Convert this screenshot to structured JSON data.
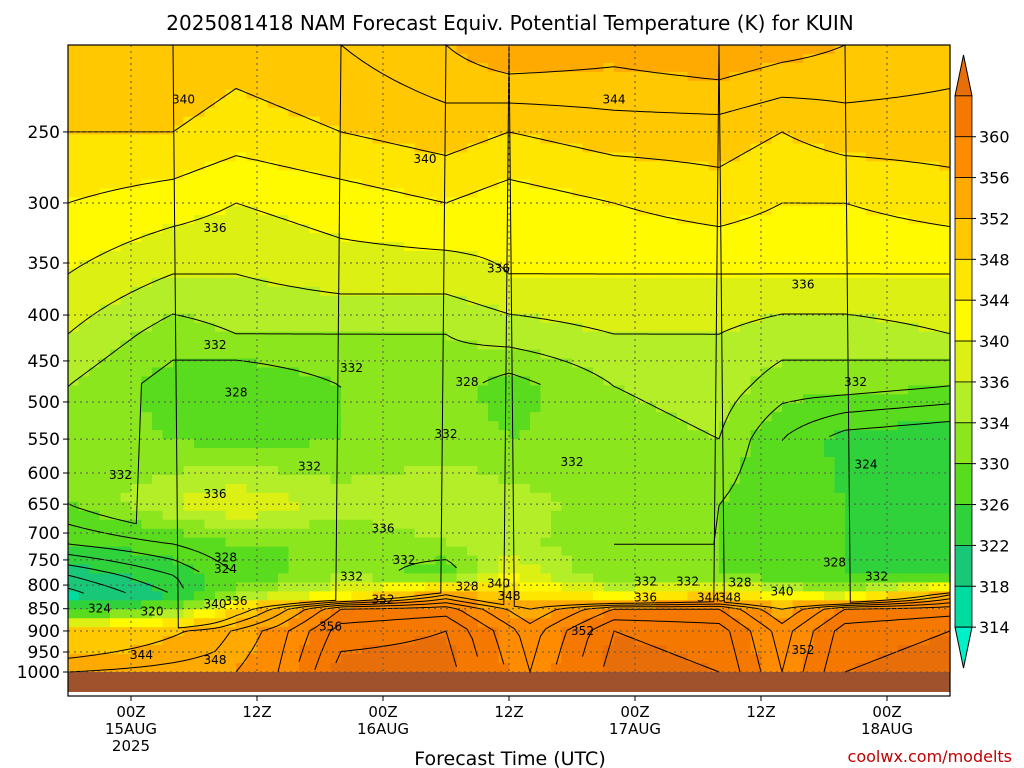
{
  "chart_data": {
    "type": "heatmap",
    "title": "2025081418 NAM Forecast Equiv. Potential Temperature (K) for KUIN",
    "xlabel": "Forecast Time (UTC)",
    "ylabel": "",
    "credit": "coolwx.com/modelts",
    "x_range_hours": [
      -6,
      78
    ],
    "x_ticks": [
      {
        "hour": 0,
        "lines": [
          "00Z",
          "15AUG",
          "2025"
        ]
      },
      {
        "hour": 12,
        "lines": [
          "12Z"
        ]
      },
      {
        "hour": 24,
        "lines": [
          "00Z",
          "16AUG"
        ]
      },
      {
        "hour": 36,
        "lines": [
          "12Z"
        ]
      },
      {
        "hour": 48,
        "lines": [
          "00Z",
          "17AUG"
        ]
      },
      {
        "hour": 60,
        "lines": [
          "12Z"
        ]
      },
      {
        "hour": 72,
        "lines": [
          "00Z",
          "18AUG"
        ]
      }
    ],
    "y_axis": {
      "scale": "log-pressure",
      "units": "hPa",
      "range": [
        1000,
        200
      ],
      "reversed": true
    },
    "y_ticks": [
      250,
      300,
      350,
      400,
      450,
      500,
      550,
      600,
      650,
      700,
      750,
      800,
      850,
      900,
      950,
      1000
    ],
    "colorbar": {
      "levels": [
        314,
        318,
        322,
        326,
        330,
        334,
        336,
        340,
        344,
        348,
        352,
        356,
        360
      ],
      "colors": [
        "#00f0c8",
        "#00dca0",
        "#18c878",
        "#30d23c",
        "#5adc1e",
        "#8ce61e",
        "#b4ee28",
        "#dcf014",
        "#fffa00",
        "#ffe600",
        "#ffc800",
        "#ffaa00",
        "#ff8c00",
        "#f57800",
        "#e86e0a"
      ]
    },
    "surface_color": "#a0522d",
    "layers": [
      {
        "p": 1000,
        "series": [
          {
            "h": -6,
            "v": 346
          },
          {
            "h": 8,
            "v": 347
          },
          {
            "h": 14,
            "v": 350
          },
          {
            "h": 20,
            "v": 357
          },
          {
            "h": 30,
            "v": 357
          },
          {
            "h": 38,
            "v": 350
          },
          {
            "h": 46,
            "v": 357
          },
          {
            "h": 56,
            "v": 356
          },
          {
            "h": 62,
            "v": 350
          },
          {
            "h": 68,
            "v": 356
          },
          {
            "h": 78,
            "v": 357
          }
        ]
      },
      {
        "p": 900,
        "series": [
          {
            "h": -6,
            "v": 340
          },
          {
            "h": 8,
            "v": 345
          },
          {
            "h": 14,
            "v": 349
          },
          {
            "h": 20,
            "v": 355
          },
          {
            "h": 30,
            "v": 356
          },
          {
            "h": 38,
            "v": 349
          },
          {
            "h": 46,
            "v": 356
          },
          {
            "h": 56,
            "v": 355
          },
          {
            "h": 62,
            "v": 349
          },
          {
            "h": 68,
            "v": 355
          },
          {
            "h": 78,
            "v": 356
          }
        ]
      },
      {
        "p": 850,
        "series": [
          {
            "h": -6,
            "v": 324
          },
          {
            "h": 4,
            "v": 330
          },
          {
            "h": 10,
            "v": 340
          },
          {
            "h": 20,
            "v": 352
          },
          {
            "h": 30,
            "v": 353
          },
          {
            "h": 38,
            "v": 346
          },
          {
            "h": 46,
            "v": 352
          },
          {
            "h": 56,
            "v": 352
          },
          {
            "h": 62,
            "v": 346
          },
          {
            "h": 68,
            "v": 352
          },
          {
            "h": 78,
            "v": 353
          }
        ]
      },
      {
        "p": 820,
        "series": [
          {
            "h": -6,
            "v": 317
          },
          {
            "h": 4,
            "v": 322
          },
          {
            "h": 10,
            "v": 332
          },
          {
            "h": 20,
            "v": 336
          },
          {
            "h": 30,
            "v": 346
          },
          {
            "h": 36,
            "v": 340
          },
          {
            "h": 46,
            "v": 336
          },
          {
            "h": 56,
            "v": 340
          },
          {
            "h": 62,
            "v": 336
          },
          {
            "h": 68,
            "v": 334
          },
          {
            "h": 78,
            "v": 346
          }
        ]
      },
      {
        "p": 780,
        "series": [
          {
            "h": -6,
            "v": 320
          },
          {
            "h": 4,
            "v": 324
          },
          {
            "h": 10,
            "v": 328
          },
          {
            "h": 20,
            "v": 332
          },
          {
            "h": 30,
            "v": 328
          },
          {
            "h": 36,
            "v": 336
          },
          {
            "h": 46,
            "v": 330
          },
          {
            "h": 56,
            "v": 330
          },
          {
            "h": 62,
            "v": 328
          },
          {
            "h": 68,
            "v": 326
          },
          {
            "h": 78,
            "v": 324
          }
        ]
      },
      {
        "p": 720,
        "series": [
          {
            "h": -6,
            "v": 326
          },
          {
            "h": 4,
            "v": 328
          },
          {
            "h": 10,
            "v": 330
          },
          {
            "h": 20,
            "v": 330
          },
          {
            "h": 30,
            "v": 332
          },
          {
            "h": 36,
            "v": 333
          },
          {
            "h": 46,
            "v": 330
          },
          {
            "h": 56,
            "v": 330
          },
          {
            "h": 62,
            "v": 328
          },
          {
            "h": 68,
            "v": 326
          },
          {
            "h": 78,
            "v": 324
          }
        ]
      },
      {
        "p": 650,
        "series": [
          {
            "h": -6,
            "v": 330
          },
          {
            "h": 4,
            "v": 334
          },
          {
            "h": 10,
            "v": 336
          },
          {
            "h": 20,
            "v": 333
          },
          {
            "h": 30,
            "v": 334
          },
          {
            "h": 36,
            "v": 333
          },
          {
            "h": 46,
            "v": 331
          },
          {
            "h": 56,
            "v": 330
          },
          {
            "h": 62,
            "v": 328
          },
          {
            "h": 68,
            "v": 326
          },
          {
            "h": 78,
            "v": 324
          }
        ]
      },
      {
        "p": 550,
        "series": [
          {
            "h": -6,
            "v": 331
          },
          {
            "h": 4,
            "v": 330
          },
          {
            "h": 10,
            "v": 329
          },
          {
            "h": 20,
            "v": 330
          },
          {
            "h": 30,
            "v": 331
          },
          {
            "h": 36,
            "v": 330
          },
          {
            "h": 46,
            "v": 331
          },
          {
            "h": 56,
            "v": 332
          },
          {
            "h": 62,
            "v": 328
          },
          {
            "h": 68,
            "v": 325
          },
          {
            "h": 78,
            "v": 324
          }
        ]
      },
      {
        "p": 480,
        "series": [
          {
            "h": -6,
            "v": 332
          },
          {
            "h": 4,
            "v": 329
          },
          {
            "h": 10,
            "v": 328
          },
          {
            "h": 20,
            "v": 330
          },
          {
            "h": 30,
            "v": 331
          },
          {
            "h": 36,
            "v": 329
          },
          {
            "h": 46,
            "v": 332
          },
          {
            "h": 56,
            "v": 333
          },
          {
            "h": 62,
            "v": 331
          },
          {
            "h": 68,
            "v": 331
          },
          {
            "h": 78,
            "v": 330
          }
        ]
      },
      {
        "p": 420,
        "series": [
          {
            "h": -6,
            "v": 334
          },
          {
            "h": 4,
            "v": 331
          },
          {
            "h": 10,
            "v": 332
          },
          {
            "h": 20,
            "v": 332
          },
          {
            "h": 30,
            "v": 332
          },
          {
            "h": 36,
            "v": 333
          },
          {
            "h": 46,
            "v": 334
          },
          {
            "h": 56,
            "v": 334
          },
          {
            "h": 62,
            "v": 333
          },
          {
            "h": 68,
            "v": 333
          },
          {
            "h": 78,
            "v": 334
          }
        ]
      },
      {
        "p": 360,
        "series": [
          {
            "h": -6,
            "v": 336
          },
          {
            "h": 4,
            "v": 334
          },
          {
            "h": 10,
            "v": 334
          },
          {
            "h": 20,
            "v": 335
          },
          {
            "h": 30,
            "v": 335
          },
          {
            "h": 36,
            "v": 336
          },
          {
            "h": 46,
            "v": 336
          },
          {
            "h": 56,
            "v": 336
          },
          {
            "h": 62,
            "v": 336
          },
          {
            "h": 68,
            "v": 336
          },
          {
            "h": 78,
            "v": 336
          }
        ]
      },
      {
        "p": 300,
        "series": [
          {
            "h": -6,
            "v": 338
          },
          {
            "h": 4,
            "v": 337
          },
          {
            "h": 10,
            "v": 336
          },
          {
            "h": 20,
            "v": 337
          },
          {
            "h": 30,
            "v": 338
          },
          {
            "h": 36,
            "v": 337
          },
          {
            "h": 46,
            "v": 338
          },
          {
            "h": 56,
            "v": 339
          },
          {
            "h": 62,
            "v": 338
          },
          {
            "h": 68,
            "v": 338
          },
          {
            "h": 78,
            "v": 339
          }
        ]
      },
      {
        "p": 250,
        "series": [
          {
            "h": -6,
            "v": 340
          },
          {
            "h": 4,
            "v": 340
          },
          {
            "h": 10,
            "v": 339
          },
          {
            "h": 20,
            "v": 340
          },
          {
            "h": 30,
            "v": 341
          },
          {
            "h": 36,
            "v": 340
          },
          {
            "h": 46,
            "v": 341
          },
          {
            "h": 56,
            "v": 341
          },
          {
            "h": 62,
            "v": 340
          },
          {
            "h": 68,
            "v": 341
          },
          {
            "h": 78,
            "v": 341
          }
        ]
      },
      {
        "p": 200,
        "series": [
          {
            "h": -6,
            "v": 342
          },
          {
            "h": 4,
            "v": 342
          },
          {
            "h": 10,
            "v": 341
          },
          {
            "h": 20,
            "v": 342
          },
          {
            "h": 30,
            "v": 344
          },
          {
            "h": 36,
            "v": 346
          },
          {
            "h": 46,
            "v": 345
          },
          {
            "h": 56,
            "v": 346
          },
          {
            "h": 62,
            "v": 345
          },
          {
            "h": 68,
            "v": 344
          },
          {
            "h": 78,
            "v": 343
          }
        ]
      }
    ],
    "contour_labels": [
      {
        "text": "340",
        "h": 5,
        "p": 230
      },
      {
        "text": "344",
        "h": 46,
        "p": 230
      },
      {
        "text": "340",
        "h": 28,
        "p": 268
      },
      {
        "text": "336",
        "h": 8,
        "p": 320
      },
      {
        "text": "336",
        "h": 35,
        "p": 355
      },
      {
        "text": "336",
        "h": 64,
        "p": 370
      },
      {
        "text": "332",
        "h": 8,
        "p": 432
      },
      {
        "text": "332",
        "h": 21,
        "p": 458
      },
      {
        "text": "328",
        "h": 10,
        "p": 488
      },
      {
        "text": "328",
        "h": 32,
        "p": 475
      },
      {
        "text": "332",
        "h": 69,
        "p": 475
      },
      {
        "text": "332",
        "h": 30,
        "p": 543
      },
      {
        "text": "332",
        "h": -1,
        "p": 603
      },
      {
        "text": "332",
        "h": 17,
        "p": 590
      },
      {
        "text": "332",
        "h": 42,
        "p": 583
      },
      {
        "text": "324",
        "h": 70,
        "p": 587
      },
      {
        "text": "336",
        "h": 8,
        "p": 633
      },
      {
        "text": "336",
        "h": 24,
        "p": 692
      },
      {
        "text": "328",
        "h": 9,
        "p": 745
      },
      {
        "text": "324",
        "h": 9,
        "p": 768
      },
      {
        "text": "332",
        "h": 26,
        "p": 750
      },
      {
        "text": "328",
        "h": 67,
        "p": 755
      },
      {
        "text": "332",
        "h": 21,
        "p": 783
      },
      {
        "text": "332",
        "h": 71,
        "p": 783
      },
      {
        "text": "332",
        "h": 49,
        "p": 793
      },
      {
        "text": "332",
        "h": 53,
        "p": 793
      },
      {
        "text": "328",
        "h": 58,
        "p": 795
      },
      {
        "text": "340",
        "h": 35,
        "p": 797
      },
      {
        "text": "328",
        "h": 32,
        "p": 803
      },
      {
        "text": "340",
        "h": 62,
        "p": 813
      },
      {
        "text": "348",
        "h": 36,
        "p": 823
      },
      {
        "text": "336",
        "h": 49,
        "p": 826
      },
      {
        "text": "344",
        "h": 55,
        "p": 826
      },
      {
        "text": "348",
        "h": 57,
        "p": 826
      },
      {
        "text": "352",
        "h": 24,
        "p": 830
      },
      {
        "text": "336",
        "h": 10,
        "p": 833
      },
      {
        "text": "340",
        "h": 8,
        "p": 840
      },
      {
        "text": "324",
        "h": -3,
        "p": 850
      },
      {
        "text": "320",
        "h": 2,
        "p": 856
      },
      {
        "text": "356",
        "h": 19,
        "p": 890
      },
      {
        "text": "352",
        "h": 43,
        "p": 900
      },
      {
        "text": "352",
        "h": 64,
        "p": 945
      },
      {
        "text": "344",
        "h": 1,
        "p": 957
      },
      {
        "text": "348",
        "h": 8,
        "p": 970
      }
    ]
  }
}
